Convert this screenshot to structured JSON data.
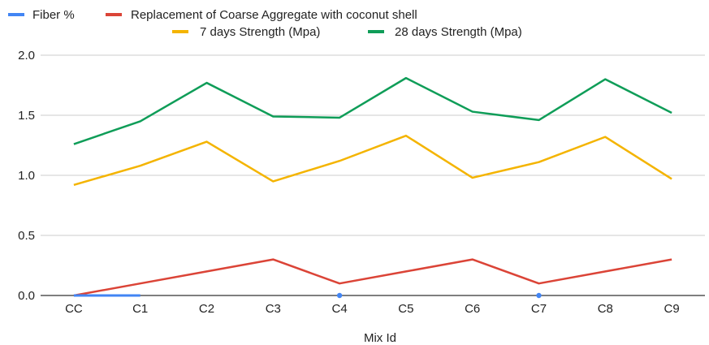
{
  "chart_data": {
    "type": "line",
    "title": "",
    "xlabel": "Mix Id",
    "ylabel": "",
    "ylim": [
      0,
      2.0
    ],
    "yticks": [
      "0.0",
      "0.5",
      "1.0",
      "1.5",
      "2.0"
    ],
    "yticks_values": [
      0,
      0.5,
      1.0,
      1.5,
      2.0
    ],
    "grid": true,
    "legend_position": "top",
    "categories": [
      "CC",
      "C1",
      "C2",
      "C3",
      "C4",
      "C5",
      "C6",
      "C7",
      "C8",
      "C9"
    ],
    "series": [
      {
        "name": "Fiber %",
        "color": "#4285F4",
        "values": [
          0,
          0,
          null,
          null,
          0,
          null,
          null,
          0,
          null,
          null
        ]
      },
      {
        "name": "Replacement of Coarse Aggregate with coconut shell",
        "color": "#DB4437",
        "values": [
          0,
          0.1,
          0.2,
          0.3,
          0.1,
          0.2,
          0.3,
          0.1,
          0.2,
          0.3
        ]
      },
      {
        "name": "7 days Strength (Mpa)",
        "color": "#F4B400",
        "values": [
          0.92,
          1.08,
          1.28,
          0.95,
          1.12,
          1.33,
          0.98,
          1.11,
          1.32,
          0.97
        ]
      },
      {
        "name": "28 days Strength (Mpa)",
        "color": "#0F9D58",
        "values": [
          1.26,
          1.45,
          1.77,
          1.49,
          1.48,
          1.81,
          1.53,
          1.46,
          1.8,
          1.52
        ]
      }
    ]
  }
}
